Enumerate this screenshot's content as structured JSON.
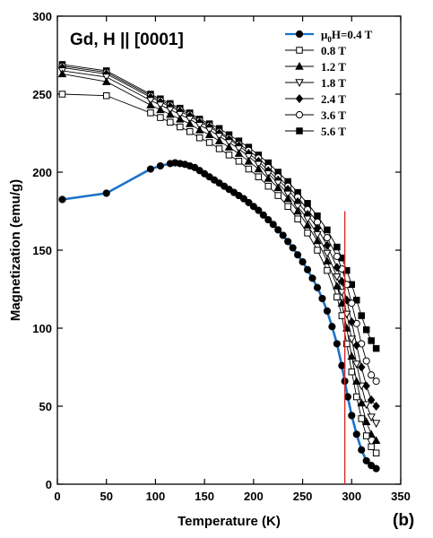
{
  "chart_data": {
    "type": "line",
    "title": "Gd, H || [0001]",
    "xlabel": "Temperature (K)",
    "ylabel": "Magnetization (emu/g)",
    "panel_label": "(b)",
    "xlim": [
      0,
      350
    ],
    "ylim": [
      0,
      300
    ],
    "x_ticks": [
      "0",
      "50",
      "100",
      "150",
      "200",
      "250",
      "300",
      "350"
    ],
    "y_ticks": [
      "0",
      "50",
      "100",
      "150",
      "200",
      "250",
      "300"
    ],
    "legend_position": "top-right",
    "vertical_line": {
      "x": 293,
      "color": "#d62a2a"
    },
    "series": [
      {
        "name": "μ0H=0.4 T",
        "legend_prefix": "μ",
        "legend_sub": "0",
        "legend_suffix": "H=0.4 T",
        "marker": "filled-circle",
        "color": "#000000",
        "fit_color": "#1a73c8",
        "points": [
          [
            5,
            182.5
          ],
          [
            50,
            186.5
          ],
          [
            95,
            202
          ],
          [
            105,
            204
          ],
          [
            115,
            205.5
          ],
          [
            120,
            206
          ],
          [
            125,
            205.5
          ],
          [
            130,
            205
          ],
          [
            135,
            204
          ],
          [
            140,
            203
          ],
          [
            145,
            201
          ],
          [
            150,
            199
          ],
          [
            155,
            197
          ],
          [
            160,
            195
          ],
          [
            165,
            193
          ],
          [
            170,
            191
          ],
          [
            175,
            189
          ],
          [
            180,
            187
          ],
          [
            185,
            185
          ],
          [
            190,
            183
          ],
          [
            195,
            180.5
          ],
          [
            200,
            178
          ],
          [
            205,
            175.5
          ],
          [
            210,
            172.5
          ],
          [
            215,
            169.5
          ],
          [
            220,
            166.5
          ],
          [
            225,
            163
          ],
          [
            230,
            159.5
          ],
          [
            235,
            155.5
          ],
          [
            240,
            151.5
          ],
          [
            245,
            147
          ],
          [
            250,
            142.5
          ],
          [
            255,
            137.5
          ],
          [
            260,
            132
          ],
          [
            265,
            126
          ],
          [
            270,
            119
          ],
          [
            275,
            111
          ],
          [
            280,
            101
          ],
          [
            285,
            90
          ],
          [
            290,
            76
          ],
          [
            293,
            66
          ],
          [
            296,
            56
          ],
          [
            300,
            44
          ],
          [
            305,
            32
          ],
          [
            310,
            22
          ],
          [
            315,
            15
          ],
          [
            320,
            12
          ],
          [
            325,
            10
          ]
        ]
      },
      {
        "name": "0.8 T",
        "marker": "open-square",
        "color": "#000000",
        "points": [
          [
            5,
            250
          ],
          [
            50,
            249
          ],
          [
            95,
            238
          ],
          [
            105,
            235
          ],
          [
            115,
            232
          ],
          [
            125,
            229
          ],
          [
            135,
            226
          ],
          [
            145,
            222
          ],
          [
            155,
            219
          ],
          [
            165,
            215
          ],
          [
            175,
            211
          ],
          [
            185,
            207
          ],
          [
            195,
            202
          ],
          [
            205,
            197
          ],
          [
            215,
            191
          ],
          [
            225,
            185
          ],
          [
            235,
            178
          ],
          [
            245,
            170
          ],
          [
            255,
            161
          ],
          [
            265,
            150
          ],
          [
            275,
            137
          ],
          [
            285,
            120
          ],
          [
            290,
            108
          ],
          [
            295,
            90
          ],
          [
            300,
            72
          ],
          [
            305,
            56
          ],
          [
            310,
            42
          ],
          [
            315,
            31
          ],
          [
            320,
            24
          ],
          [
            325,
            20
          ]
        ]
      },
      {
        "name": "1.2 T",
        "marker": "filled-triangle-up",
        "color": "#000000",
        "points": [
          [
            5,
            263
          ],
          [
            50,
            258
          ],
          [
            95,
            243
          ],
          [
            105,
            240
          ],
          [
            115,
            237
          ],
          [
            125,
            234
          ],
          [
            135,
            231
          ],
          [
            145,
            227
          ],
          [
            155,
            224
          ],
          [
            165,
            220
          ],
          [
            175,
            216
          ],
          [
            185,
            212
          ],
          [
            195,
            207
          ],
          [
            205,
            202
          ],
          [
            215,
            196
          ],
          [
            225,
            190
          ],
          [
            235,
            183
          ],
          [
            245,
            175
          ],
          [
            255,
            166
          ],
          [
            265,
            156
          ],
          [
            275,
            143
          ],
          [
            285,
            127
          ],
          [
            290,
            116
          ],
          [
            295,
            100
          ],
          [
            300,
            82
          ],
          [
            305,
            66
          ],
          [
            310,
            52
          ],
          [
            315,
            40
          ],
          [
            320,
            32
          ],
          [
            325,
            28
          ]
        ]
      },
      {
        "name": "1.8 T",
        "marker": "open-triangle-down",
        "color": "#000000",
        "points": [
          [
            5,
            265
          ],
          [
            50,
            261
          ],
          [
            95,
            246
          ],
          [
            105,
            243
          ],
          [
            115,
            240
          ],
          [
            125,
            237
          ],
          [
            135,
            234
          ],
          [
            145,
            230
          ],
          [
            155,
            227
          ],
          [
            165,
            223
          ],
          [
            175,
            219
          ],
          [
            185,
            215
          ],
          [
            195,
            210
          ],
          [
            205,
            205
          ],
          [
            215,
            199
          ],
          [
            225,
            193
          ],
          [
            235,
            186
          ],
          [
            245,
            178
          ],
          [
            255,
            170
          ],
          [
            265,
            160
          ],
          [
            275,
            148
          ],
          [
            285,
            133
          ],
          [
            290,
            123
          ],
          [
            295,
            109
          ],
          [
            300,
            93
          ],
          [
            305,
            77
          ],
          [
            310,
            63
          ],
          [
            315,
            51
          ],
          [
            320,
            43
          ],
          [
            325,
            39
          ]
        ]
      },
      {
        "name": "2.4 T",
        "marker": "filled-diamond",
        "color": "#000000",
        "points": [
          [
            5,
            267
          ],
          [
            50,
            263
          ],
          [
            95,
            248
          ],
          [
            105,
            245
          ],
          [
            115,
            242
          ],
          [
            125,
            239
          ],
          [
            135,
            236
          ],
          [
            145,
            232
          ],
          [
            155,
            229
          ],
          [
            165,
            225
          ],
          [
            175,
            221
          ],
          [
            185,
            217
          ],
          [
            195,
            212
          ],
          [
            205,
            207
          ],
          [
            215,
            201
          ],
          [
            225,
            195
          ],
          [
            235,
            189
          ],
          [
            245,
            181
          ],
          [
            255,
            173
          ],
          [
            265,
            164
          ],
          [
            275,
            153
          ],
          [
            285,
            139
          ],
          [
            290,
            130
          ],
          [
            295,
            118
          ],
          [
            300,
            104
          ],
          [
            305,
            89
          ],
          [
            310,
            75
          ],
          [
            315,
            63
          ],
          [
            320,
            54
          ],
          [
            325,
            50
          ]
        ]
      },
      {
        "name": "3.6 T",
        "marker": "open-circle",
        "color": "#000000",
        "points": [
          [
            5,
            268
          ],
          [
            50,
            264
          ],
          [
            95,
            249
          ],
          [
            105,
            246
          ],
          [
            115,
            243
          ],
          [
            125,
            240
          ],
          [
            135,
            237
          ],
          [
            145,
            233
          ],
          [
            155,
            230
          ],
          [
            165,
            226
          ],
          [
            175,
            222
          ],
          [
            185,
            218
          ],
          [
            195,
            214
          ],
          [
            205,
            209
          ],
          [
            215,
            203
          ],
          [
            225,
            197
          ],
          [
            235,
            191
          ],
          [
            245,
            184
          ],
          [
            255,
            176
          ],
          [
            265,
            168
          ],
          [
            275,
            158
          ],
          [
            285,
            146
          ],
          [
            290,
            138
          ],
          [
            295,
            128
          ],
          [
            300,
            116
          ],
          [
            305,
            103
          ],
          [
            310,
            90
          ],
          [
            315,
            79
          ],
          [
            320,
            70
          ],
          [
            325,
            66
          ]
        ]
      },
      {
        "name": "5.6 T",
        "marker": "filled-square",
        "color": "#000000",
        "points": [
          [
            5,
            269
          ],
          [
            50,
            265
          ],
          [
            95,
            250
          ],
          [
            105,
            247
          ],
          [
            115,
            244
          ],
          [
            125,
            241
          ],
          [
            135,
            238
          ],
          [
            145,
            234
          ],
          [
            155,
            231
          ],
          [
            165,
            228
          ],
          [
            175,
            224
          ],
          [
            185,
            220
          ],
          [
            195,
            216
          ],
          [
            205,
            211
          ],
          [
            215,
            206
          ],
          [
            225,
            200
          ],
          [
            235,
            194
          ],
          [
            245,
            187
          ],
          [
            255,
            180
          ],
          [
            265,
            172
          ],
          [
            275,
            163
          ],
          [
            285,
            152
          ],
          [
            290,
            145
          ],
          [
            295,
            137
          ],
          [
            300,
            128
          ],
          [
            305,
            118
          ],
          [
            310,
            108
          ],
          [
            315,
            99
          ],
          [
            320,
            92
          ],
          [
            325,
            87
          ]
        ]
      }
    ]
  }
}
